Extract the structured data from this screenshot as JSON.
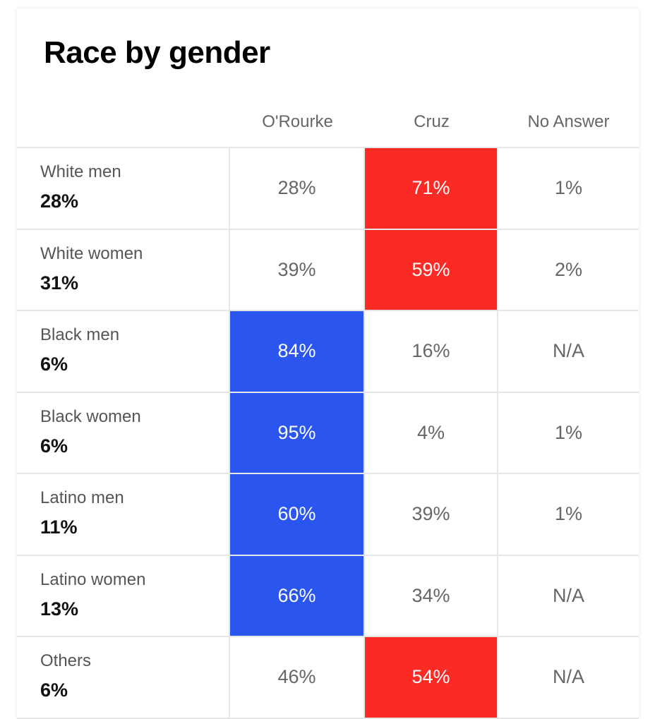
{
  "title": "Race by gender",
  "colors": {
    "orourke_win": "#2a55ee",
    "cruz_win": "#fb2a25",
    "grid_line": "#e6e6e6"
  },
  "chart_data": {
    "type": "table",
    "title": "Race by gender",
    "columns": [
      "O'Rourke",
      "Cruz",
      "No Answer"
    ],
    "rows": [
      {
        "label": "White men",
        "share": "28%",
        "values": [
          "28%",
          "71%",
          "1%"
        ],
        "winner": 1
      },
      {
        "label": "White women",
        "share": "31%",
        "values": [
          "39%",
          "59%",
          "2%"
        ],
        "winner": 1
      },
      {
        "label": "Black men",
        "share": "6%",
        "values": [
          "84%",
          "16%",
          "N/A"
        ],
        "winner": 0
      },
      {
        "label": "Black women",
        "share": "6%",
        "values": [
          "95%",
          "4%",
          "1%"
        ],
        "winner": 0
      },
      {
        "label": "Latino men",
        "share": "11%",
        "values": [
          "60%",
          "39%",
          "1%"
        ],
        "winner": 0
      },
      {
        "label": "Latino women",
        "share": "13%",
        "values": [
          "66%",
          "34%",
          "N/A"
        ],
        "winner": 0
      },
      {
        "label": "Others",
        "share": "6%",
        "values": [
          "46%",
          "54%",
          "N/A"
        ],
        "winner": 1
      }
    ]
  }
}
